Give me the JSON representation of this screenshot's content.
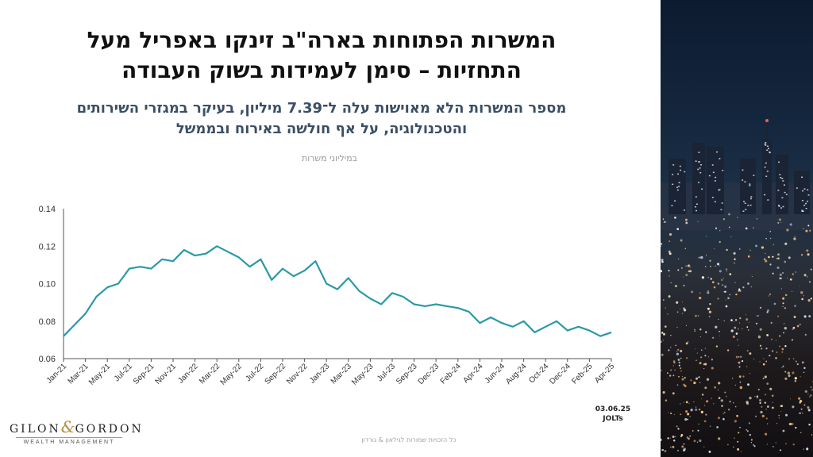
{
  "header": {
    "title_line1": "המשרות הפתוחות בארה\"ב זינקו באפריל מעל",
    "title_line2": "התחזיות – סימן לעמידות בשוק העבודה",
    "subtitle_line1": "מספר המשרות הלא מאוישות עלה ל־7.39 מיליון, בעיקר במגזרי השירותים",
    "subtitle_line2": "והטכנולוגיה, על אף חולשה באירוח ובממשל"
  },
  "chart_data": {
    "type": "line",
    "units_label": "במיליוני משרות",
    "ylim": [
      0.06,
      0.14
    ],
    "y_ticks": [
      "0.14",
      "0.12",
      "0.10",
      "0.08",
      "0.06"
    ],
    "x_tick_labels": [
      "Jan-21",
      "Mar-21",
      "May-21",
      "Jul-21",
      "Sep-21",
      "Nov-21",
      "Jan-22",
      "Mar-22",
      "May-22",
      "Jul-22",
      "Sep-22",
      "Nov-22",
      "Jan-23",
      "Mar-23",
      "May-23",
      "Jul-23",
      "Sep-23",
      "Dec-23",
      "Feb-24",
      "Apr-24",
      "Jun-24",
      "Aug-24",
      "Oct-24",
      "Dec-24",
      "Feb-25",
      "Apr-25"
    ],
    "series": [
      {
        "color": "#2a9aa6",
        "values": [
          0.072,
          0.078,
          0.084,
          0.093,
          0.098,
          0.1,
          0.108,
          0.109,
          0.108,
          0.113,
          0.112,
          0.118,
          0.115,
          0.116,
          0.12,
          0.117,
          0.114,
          0.109,
          0.113,
          0.102,
          0.108,
          0.104,
          0.107,
          0.112,
          0.1,
          0.097,
          0.103,
          0.096,
          0.092,
          0.089,
          0.095,
          0.093,
          0.089,
          0.088,
          0.089,
          0.088,
          0.087,
          0.085,
          0.079,
          0.082,
          0.079,
          0.077,
          0.08,
          0.074,
          0.077,
          0.08,
          0.075,
          0.077,
          0.075,
          0.072,
          0.074
        ]
      }
    ]
  },
  "footer": {
    "note_date": "03.06.25",
    "note_source": "JOLTs",
    "copyright": "כל הזכויות שמורות לגילאון & גורדון",
    "logo_left": "GILON",
    "logo_amp": "&",
    "logo_right": "GORDON",
    "logo_sub": "WEALTH MANAGEMENT"
  },
  "theme": {
    "line_color": "#2a9aa6",
    "title_color": "#111111",
    "subtitle_color": "#3b4f64"
  }
}
